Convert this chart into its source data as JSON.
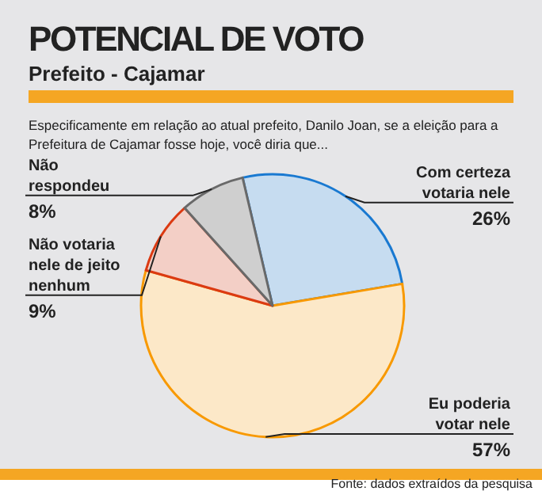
{
  "chart_data": {
    "type": "pie",
    "title": "POTENCIAL DE VOTO",
    "subtitle": "Prefeito - Cajamar",
    "annotations": [
      "Especificamente em relação ao atual prefeito, Danilo Joan, se a eleição para a Prefeitura de Cajamar fosse hoje, você diria que...",
      "Fonte: dados extraídos da pesquisa"
    ],
    "categories": [
      "Com certeza votaria nele",
      "Eu poderia votar nele",
      "Não votaria nele de jeito nenhum",
      "Não respondeu"
    ],
    "values": [
      26,
      57,
      9,
      8
    ],
    "value_labels": [
      "26%",
      "57%",
      "9%",
      "8%"
    ],
    "colors": [
      "#c6dcf0",
      "#fce8c8",
      "#f3cfc6",
      "#cfcfcf"
    ]
  }
}
